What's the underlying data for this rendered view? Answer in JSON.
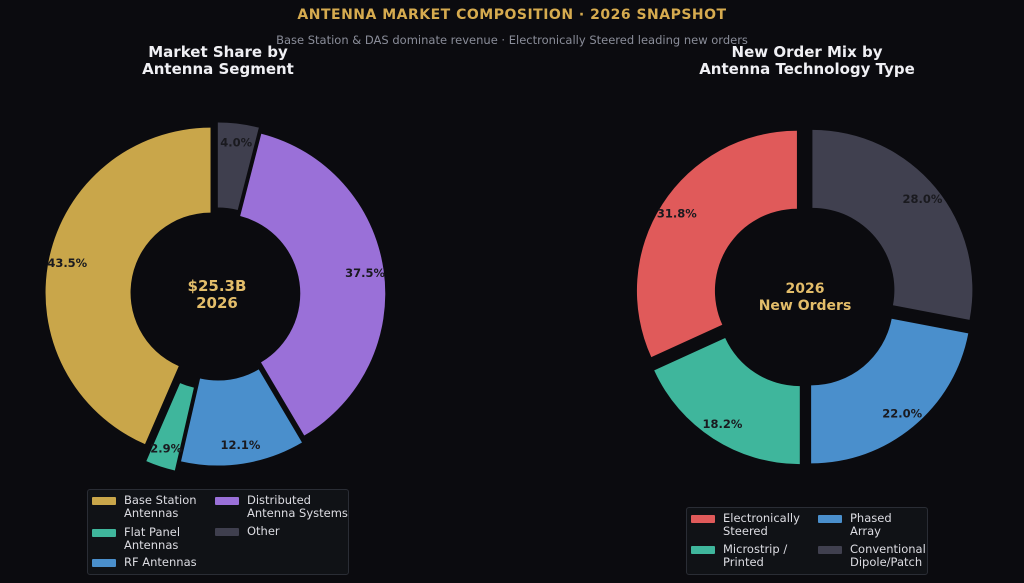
{
  "header": {
    "title": "ANTENNA MARKET COMPOSITION  ·  2026 SNAPSHOT",
    "subtitle": "Base Station & DAS dominate revenue  ·  Electronically Steered leading new orders"
  },
  "chart_data": [
    {
      "type": "pie",
      "title": "Market Share by\nAntenna Segment",
      "center_label": [
        "$25.3B",
        "2026"
      ],
      "legend_placement": "bottom-center",
      "start_angle_deg": 90,
      "direction": "counterclockwise",
      "categories": [
        "Base Station Antennas",
        "Flat Panel Antennas",
        "RF Antennas",
        "Distributed Antenna Systems",
        "Other"
      ],
      "legend_labels": [
        "Base Station\nAntennas",
        "Flat Panel\nAntennas",
        "RF Antennas",
        "Distributed\nAntenna Systems",
        "Other"
      ],
      "values": [
        43.5,
        2.9,
        12.1,
        37.5,
        4.0
      ],
      "data_labels": [
        "43.5%",
        "2.9%",
        "12.1%",
        "37.5%",
        "4.0%"
      ],
      "colors": [
        "#c9a64a",
        "#3fb69c",
        "#4a8fcc",
        "#9a70d8",
        "#3f3f4e"
      ],
      "explode": [
        0.04,
        0.1,
        0.04,
        0.02,
        0.04
      ]
    },
    {
      "type": "pie",
      "title": "New Order Mix by\nAntenna Technology Type",
      "center_label": [
        "2026",
        "New Orders"
      ],
      "legend_placement": "bottom-center",
      "start_angle_deg": 90,
      "direction": "counterclockwise",
      "categories": [
        "Electronically Steered",
        "Microstrip / Printed",
        "Phased Array",
        "Conventional Dipole/Patch"
      ],
      "legend_labels": [
        "Electronically\nSteered",
        "Microstrip /\nPrinted",
        "Phased\nArray",
        "Conventional\nDipole/Patch"
      ],
      "values": [
        31.8,
        18.2,
        22.0,
        28.0
      ],
      "data_labels": [
        "31.8%",
        "18.2%",
        "22.0%",
        "28.0%"
      ],
      "colors": [
        "#e05a5a",
        "#3fb69c",
        "#4a8fcc",
        "#40404f"
      ],
      "explode": [
        0.06,
        0.06,
        0.06,
        0.06
      ]
    }
  ]
}
